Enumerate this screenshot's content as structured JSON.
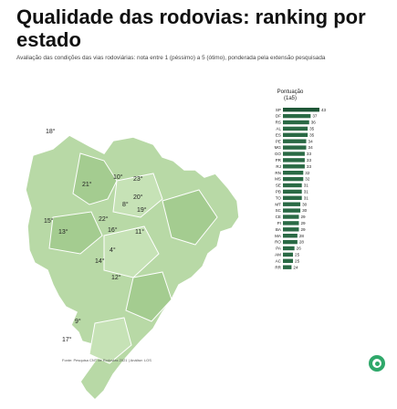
{
  "title": "Qualidade das rodovias: ranking por estado",
  "subtitle": "Avaliação das condições das vias rodoviárias: nota entre 1 (péssimo) a 5 (ótimo), ponderada pela extensão pesquisada",
  "source": "Fonte: Pesquisa CNT de Rodovias 2021 | Análise: LOS",
  "colors": {
    "bar": "#2a6a45",
    "bar_top": "#1e5636",
    "map_fill": "#b8d9a6",
    "map_stroke": "#ffffff",
    "accent": "#2fa86a"
  },
  "chart_data": [
    {
      "type": "bar",
      "orientation": "horizontal",
      "legend_title": "Pontuação\n(1a5)",
      "categories": [
        "SP",
        "DF",
        "RS",
        "AL",
        "ES",
        "PE",
        "MG",
        "GO",
        "PR",
        "RJ",
        "RN",
        "MS",
        "SE",
        "PB",
        "TO",
        "MT",
        "SC",
        "CE",
        "PI",
        "BA",
        "MA",
        "RO",
        "PA",
        "AM",
        "AC",
        "RR"
      ],
      "values": [
        4.3,
        3.7,
        3.6,
        3.5,
        3.5,
        3.4,
        3.4,
        3.3,
        3.3,
        3.3,
        3.2,
        3.2,
        3.1,
        3.1,
        3.1,
        3.0,
        3.0,
        2.9,
        2.9,
        2.9,
        2.8,
        2.8,
        2.6,
        2.5,
        2.5,
        2.4
      ],
      "value_labels": [
        "43",
        "37",
        "36",
        "35",
        "35",
        "34",
        "34",
        "33",
        "33",
        "33",
        "32",
        "32",
        "31",
        "31",
        "31",
        "30",
        "30",
        "29",
        "29",
        "29",
        "28",
        "28",
        "26",
        "25",
        "25",
        "24"
      ]
    },
    {
      "type": "map",
      "labels": [
        "18°",
        "21°",
        "10°",
        "23°",
        "20°",
        "8°",
        "19°",
        "15°",
        "22°",
        "13°",
        "16°",
        "11°",
        "4°",
        "14°",
        "12°",
        "9°",
        "17°"
      ]
    }
  ]
}
